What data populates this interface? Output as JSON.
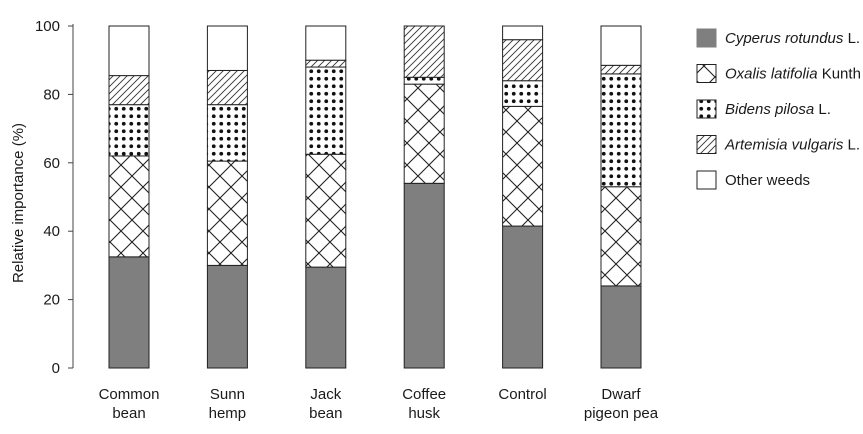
{
  "chart_data": {
    "type": "bar",
    "stacked": true,
    "ylabel": "Relative importance (%)",
    "ylim": [
      0,
      100
    ],
    "yticks": [
      "0",
      "20",
      "40",
      "60",
      "80",
      "100"
    ],
    "categories": [
      [
        "Common",
        "bean"
      ],
      [
        "Sunn",
        "hemp"
      ],
      [
        "Jack",
        "bean"
      ],
      [
        "Coffee",
        "husk"
      ],
      [
        "Control"
      ],
      [
        "Dwarf",
        "pigeon pea"
      ]
    ],
    "series": [
      {
        "name_italic": "Cyperus rotundus",
        "name_plain": " L.",
        "pattern": "solid",
        "values": [
          32.5,
          30,
          29.5,
          54,
          41.5,
          24
        ]
      },
      {
        "name_italic": "Oxalis latifolia",
        "name_plain": " Kunth",
        "pattern": "crosshatch",
        "values": [
          29.5,
          30.5,
          33,
          29,
          35,
          29
        ]
      },
      {
        "name_italic": "Bidens pilosa",
        "name_plain": " L.",
        "pattern": "dots",
        "values": [
          15,
          16.5,
          25.5,
          2,
          7.5,
          33
        ]
      },
      {
        "name_italic": "Artemisia vulgaris",
        "name_plain": " L.",
        "pattern": "diagonal",
        "values": [
          8.5,
          10,
          2,
          15,
          12,
          2.5
        ]
      },
      {
        "name_italic": "",
        "name_plain": "Other weeds",
        "pattern": "white",
        "values": [
          14.5,
          13,
          10,
          0,
          4,
          11.5
        ]
      }
    ],
    "grid": false,
    "legend": "right"
  }
}
